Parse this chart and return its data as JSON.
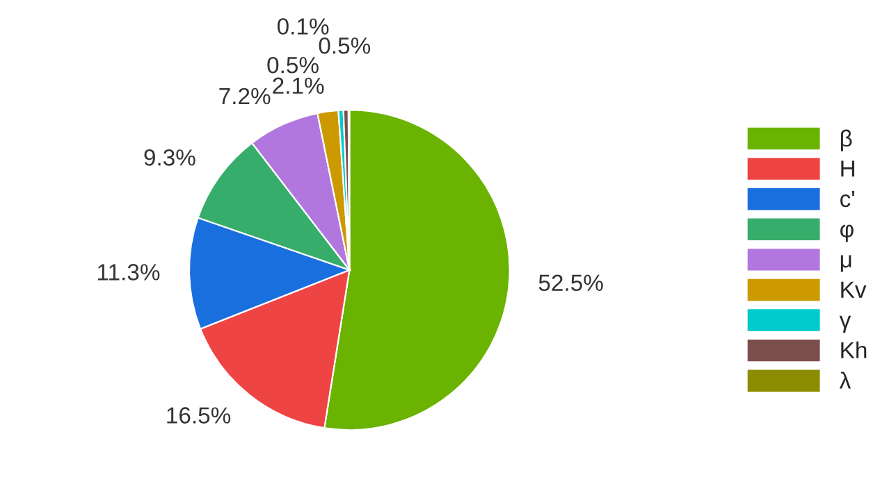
{
  "chart_data": {
    "type": "pie",
    "categories": [
      "β",
      "H",
      "c'",
      "φ",
      "μ",
      "Kv",
      "γ",
      "Kh",
      "λ"
    ],
    "values": [
      52.5,
      16.5,
      11.3,
      9.3,
      7.2,
      2.1,
      0.5,
      0.5,
      0.1
    ],
    "value_labels": [
      "52.5%",
      "16.5%",
      "11.3%",
      "9.3%",
      "7.2%",
      "2.1%",
      "0.5%",
      "0.5%",
      "0.1%"
    ],
    "colors": [
      "#6ab300",
      "#ef4444",
      "#1a6fdf",
      "#37ad6b",
      "#b177de",
      "#cc9900",
      "#00cbcc",
      "#7d4e4e",
      "#8c8c00"
    ],
    "legend": "right"
  }
}
